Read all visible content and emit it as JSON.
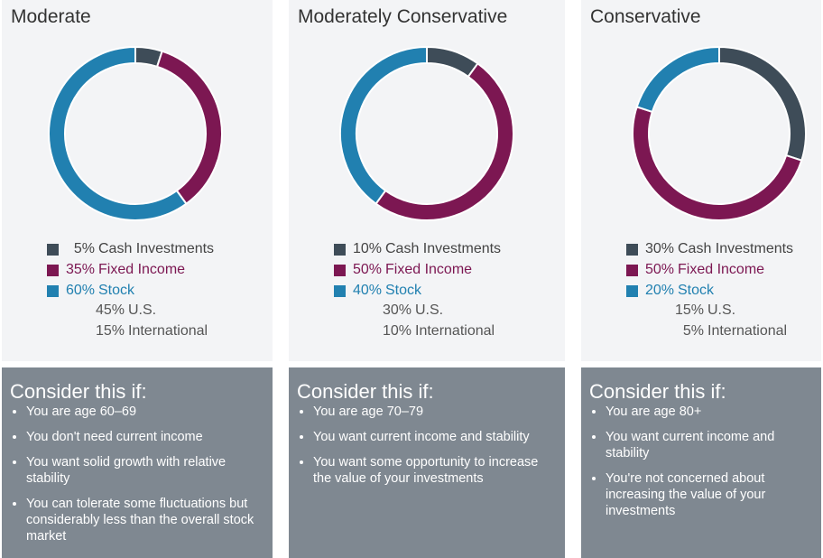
{
  "chart_data": [
    {
      "type": "pie",
      "title": "Moderate",
      "categories": [
        "Cash Investments",
        "Fixed Income",
        "Stock"
      ],
      "values": [
        5,
        35,
        60
      ],
      "value_labels": [
        "5%",
        "35%",
        "60%"
      ],
      "colors": [
        "#3e4c58",
        "#7c1752",
        "#2180b0"
      ],
      "stock_breakdown": {
        "categories": [
          "U.S.",
          "International"
        ],
        "values": [
          45,
          15
        ],
        "value_labels": [
          "45%",
          "15%"
        ]
      }
    },
    {
      "type": "pie",
      "title": "Moderately Conservative",
      "categories": [
        "Cash Investments",
        "Fixed Income",
        "Stock"
      ],
      "values": [
        10,
        50,
        40
      ],
      "value_labels": [
        "10%",
        "50%",
        "40%"
      ],
      "colors": [
        "#3e4c58",
        "#7c1752",
        "#2180b0"
      ],
      "stock_breakdown": {
        "categories": [
          "U.S.",
          "International"
        ],
        "values": [
          30,
          10
        ],
        "value_labels": [
          "30%",
          "10%"
        ]
      }
    },
    {
      "type": "pie",
      "title": "Conservative",
      "categories": [
        "Cash Investments",
        "Fixed Income",
        "Stock"
      ],
      "values": [
        30,
        50,
        20
      ],
      "value_labels": [
        "30%",
        "50%",
        "20%"
      ],
      "colors": [
        "#3e4c58",
        "#7c1752",
        "#2180b0"
      ],
      "stock_breakdown": {
        "categories": [
          "U.S.",
          "International"
        ],
        "values": [
          15,
          5
        ],
        "value_labels": [
          "15%",
          "5%"
        ]
      }
    }
  ],
  "panels": [
    {
      "heading": "Consider this if:",
      "items": [
        "You are age 60–69",
        "You don't need current income",
        "You want solid growth with relative stability",
        "You can tolerate some fluctuations but considerably less than the overall stock market"
      ]
    },
    {
      "heading": "Consider this if:",
      "items": [
        "You are age 70–79",
        "You want current income and stability",
        "You want some opportunity to increase the value of your investments"
      ]
    },
    {
      "heading": "Consider this if:",
      "items": [
        "You are age 80+",
        "You want current income and stability",
        "You're not concerned about increasing the value of your investments"
      ]
    }
  ]
}
